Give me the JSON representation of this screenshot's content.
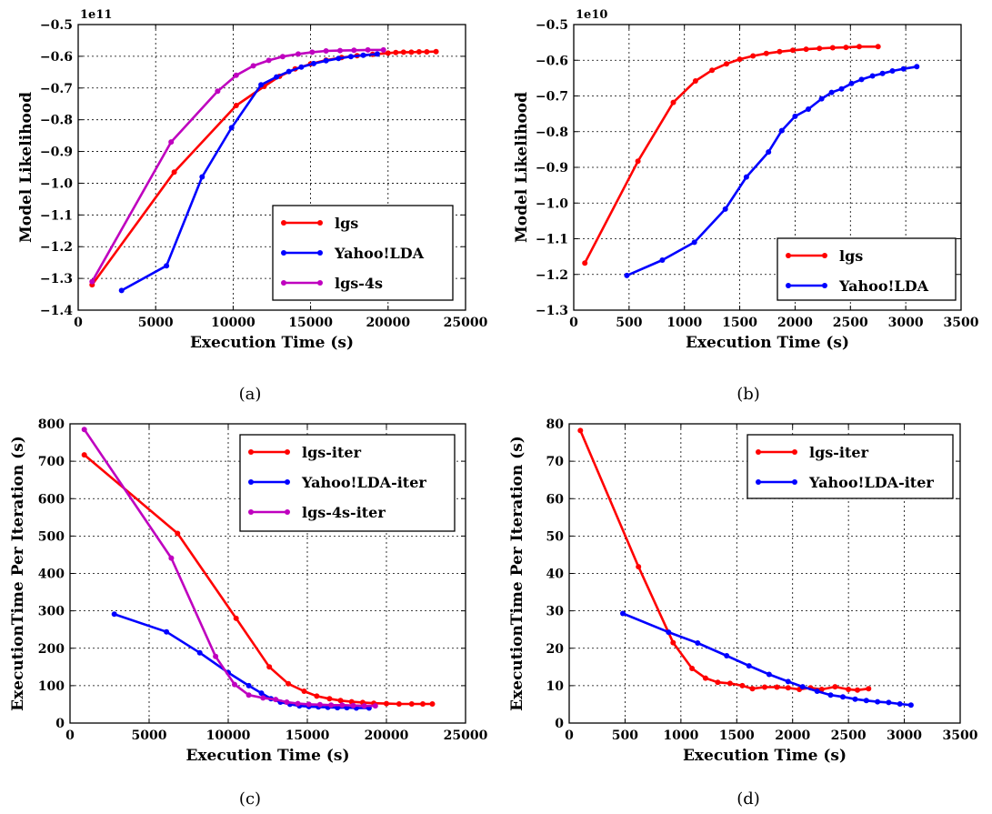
{
  "chart_data": [
    {
      "type": "line",
      "caption": "(a)",
      "xlabel": "Execution Time (s)",
      "ylabel": "Model Likelihood",
      "y_offset_label": "1e11",
      "xlim": [
        0,
        25000
      ],
      "ylim": [
        -1.4,
        -0.5
      ],
      "xticks": [
        0,
        5000,
        10000,
        15000,
        20000,
        25000
      ],
      "yticks": [
        -1.4,
        -1.3,
        -1.2,
        -1.1,
        -1.0,
        -0.9,
        -0.8,
        -0.7,
        -0.6,
        -0.5
      ],
      "xtick_labels": [
        "0",
        "5000",
        "10000",
        "15000",
        "20000",
        "25000"
      ],
      "ytick_labels": [
        "−1.4",
        "−1.3",
        "−1.2",
        "−1.1",
        "−1.0",
        "−0.9",
        "−0.8",
        "−0.7",
        "−0.6",
        "−0.5"
      ],
      "grid": true,
      "legend_position": "lower-right",
      "series": [
        {
          "name": "lgs",
          "color": "#ff0000",
          "points": [
            [
              900,
              -1.32
            ],
            [
              6200,
              -0.965
            ],
            [
              10200,
              -0.755
            ],
            [
              12000,
              -0.695
            ],
            [
              13000,
              -0.663
            ],
            [
              14000,
              -0.64
            ],
            [
              15000,
              -0.624
            ],
            [
              16000,
              -0.612
            ],
            [
              17000,
              -0.604
            ],
            [
              18000,
              -0.598
            ],
            [
              19000,
              -0.594
            ],
            [
              20000,
              -0.59
            ],
            [
              20500,
              -0.588
            ],
            [
              21000,
              -0.587
            ],
            [
              21500,
              -0.587
            ],
            [
              22000,
              -0.586
            ],
            [
              22500,
              -0.586
            ],
            [
              23100,
              -0.585
            ]
          ]
        },
        {
          "name": "Yahoo!LDA",
          "color": "#0000ff",
          "points": [
            [
              2800,
              -1.338
            ],
            [
              5700,
              -1.26
            ],
            [
              8000,
              -0.98
            ],
            [
              9900,
              -0.825
            ],
            [
              11800,
              -0.69
            ],
            [
              12800,
              -0.665
            ],
            [
              13600,
              -0.648
            ],
            [
              14400,
              -0.634
            ],
            [
              15200,
              -0.623
            ],
            [
              16000,
              -0.614
            ],
            [
              16800,
              -0.607
            ],
            [
              17600,
              -0.601
            ],
            [
              18400,
              -0.597
            ],
            [
              19300,
              -0.593
            ]
          ]
        },
        {
          "name": "lgs-4s",
          "color": "#bf00bf",
          "points": [
            [
              900,
              -1.31
            ],
            [
              6000,
              -0.87
            ],
            [
              9000,
              -0.71
            ],
            [
              10200,
              -0.66
            ],
            [
              11300,
              -0.63
            ],
            [
              12300,
              -0.613
            ],
            [
              13200,
              -0.601
            ],
            [
              14200,
              -0.593
            ],
            [
              15100,
              -0.587
            ],
            [
              16000,
              -0.583
            ],
            [
              16900,
              -0.582
            ],
            [
              17800,
              -0.581
            ],
            [
              18700,
              -0.58
            ],
            [
              19700,
              -0.58
            ]
          ]
        }
      ]
    },
    {
      "type": "line",
      "caption": "(b)",
      "xlabel": "Execution Time (s)",
      "ylabel": "Model Likelihood",
      "y_offset_label": "1e10",
      "xlim": [
        0,
        3500
      ],
      "ylim": [
        -1.3,
        -0.5
      ],
      "xticks": [
        0,
        500,
        1000,
        1500,
        2000,
        2500,
        3000,
        3500
      ],
      "yticks": [
        -1.3,
        -1.2,
        -1.1,
        -1.0,
        -0.9,
        -0.8,
        -0.7,
        -0.6,
        -0.5
      ],
      "xtick_labels": [
        "0",
        "500",
        "1000",
        "1500",
        "2000",
        "2500",
        "3000",
        "3500"
      ],
      "ytick_labels": [
        "−1.3",
        "−1.2",
        "−1.1",
        "−1.0",
        "−0.9",
        "−0.8",
        "−0.7",
        "−0.6",
        "−0.5"
      ],
      "grid": true,
      "legend_position": "lower-right",
      "series": [
        {
          "name": "lgs",
          "color": "#ff0000",
          "points": [
            [
              100,
              -1.168
            ],
            [
              580,
              -0.883
            ],
            [
              900,
              -0.718
            ],
            [
              1100,
              -0.658
            ],
            [
              1250,
              -0.628
            ],
            [
              1380,
              -0.61
            ],
            [
              1500,
              -0.597
            ],
            [
              1620,
              -0.588
            ],
            [
              1740,
              -0.581
            ],
            [
              1860,
              -0.576
            ],
            [
              1980,
              -0.572
            ],
            [
              2100,
              -0.569
            ],
            [
              2220,
              -0.567
            ],
            [
              2340,
              -0.565
            ],
            [
              2460,
              -0.564
            ],
            [
              2580,
              -0.562
            ],
            [
              2750,
              -0.562
            ]
          ]
        },
        {
          "name": "Yahoo!LDA",
          "color": "#0000ff",
          "points": [
            [
              480,
              -1.203
            ],
            [
              800,
              -1.16
            ],
            [
              1090,
              -1.11
            ],
            [
              1370,
              -1.017
            ],
            [
              1560,
              -0.927
            ],
            [
              1760,
              -0.857
            ],
            [
              1880,
              -0.797
            ],
            [
              2000,
              -0.757
            ],
            [
              2120,
              -0.737
            ],
            [
              2240,
              -0.708
            ],
            [
              2330,
              -0.69
            ],
            [
              2420,
              -0.68
            ],
            [
              2510,
              -0.665
            ],
            [
              2600,
              -0.654
            ],
            [
              2700,
              -0.644
            ],
            [
              2790,
              -0.637
            ],
            [
              2880,
              -0.63
            ],
            [
              2980,
              -0.624
            ],
            [
              3100,
              -0.618
            ]
          ]
        }
      ]
    },
    {
      "type": "line",
      "caption": "(c)",
      "xlabel": "Execution Time (s)",
      "ylabel": "ExecutionTime Per Iteration (s)",
      "xlim": [
        0,
        25000
      ],
      "ylim": [
        0,
        800
      ],
      "xticks": [
        0,
        5000,
        10000,
        15000,
        20000,
        25000
      ],
      "yticks": [
        0,
        100,
        200,
        300,
        400,
        500,
        600,
        700,
        800
      ],
      "xtick_labels": [
        "0",
        "5000",
        "10000",
        "15000",
        "20000",
        "25000"
      ],
      "ytick_labels": [
        "0",
        "100",
        "200",
        "300",
        "400",
        "500",
        "600",
        "700",
        "800"
      ],
      "grid": true,
      "legend_position": "top-right",
      "series": [
        {
          "name": "lgs-iter",
          "color": "#ff0000",
          "points": [
            [
              900,
              717
            ],
            [
              6800,
              507
            ],
            [
              10500,
              280
            ],
            [
              12600,
              150
            ],
            [
              13800,
              105
            ],
            [
              14800,
              85
            ],
            [
              15600,
              72
            ],
            [
              16400,
              65
            ],
            [
              17100,
              60
            ],
            [
              17800,
              57
            ],
            [
              18500,
              55
            ],
            [
              19200,
              53
            ],
            [
              20000,
              52
            ],
            [
              20800,
              51
            ],
            [
              21600,
              51
            ],
            [
              22300,
              51
            ],
            [
              22900,
              51
            ]
          ]
        },
        {
          "name": "Yahoo!LDA-iter",
          "color": "#0000ff",
          "points": [
            [
              2800,
              291
            ],
            [
              6100,
              244
            ],
            [
              8200,
              188
            ],
            [
              10000,
              135
            ],
            [
              11300,
              100
            ],
            [
              12100,
              80
            ],
            [
              12700,
              65
            ],
            [
              13300,
              56
            ],
            [
              13900,
              50
            ],
            [
              14500,
              46
            ],
            [
              15100,
              44
            ],
            [
              15700,
              43
            ],
            [
              16300,
              42
            ],
            [
              16900,
              41
            ],
            [
              17500,
              41
            ],
            [
              18100,
              40
            ],
            [
              18900,
              40
            ]
          ]
        },
        {
          "name": "lgs-4s-iter",
          "color": "#bf00bf",
          "points": [
            [
              900,
              785
            ],
            [
              6400,
              441
            ],
            [
              9200,
              178
            ],
            [
              10400,
              103
            ],
            [
              11300,
              75
            ],
            [
              12200,
              67
            ],
            [
              13000,
              63
            ],
            [
              13700,
              56
            ],
            [
              14400,
              52
            ],
            [
              15100,
              50
            ],
            [
              15800,
              49
            ],
            [
              16500,
              48
            ],
            [
              17200,
              48
            ],
            [
              17900,
              47
            ],
            [
              18600,
              46
            ],
            [
              19300,
              46
            ]
          ]
        }
      ]
    },
    {
      "type": "line",
      "caption": "(d)",
      "xlabel": "Execution Time (s)",
      "ylabel": "ExecutionTime Per Iteration (s)",
      "xlim": [
        0,
        3500
      ],
      "ylim": [
        0,
        80
      ],
      "xticks": [
        0,
        500,
        1000,
        1500,
        2000,
        2500,
        3000,
        3500
      ],
      "yticks": [
        0,
        10,
        20,
        30,
        40,
        50,
        60,
        70,
        80
      ],
      "xtick_labels": [
        "0",
        "500",
        "1000",
        "1500",
        "2000",
        "2500",
        "3000",
        "3500"
      ],
      "ytick_labels": [
        "0",
        "10",
        "20",
        "30",
        "40",
        "50",
        "60",
        "70",
        "80"
      ],
      "grid": true,
      "legend_position": "top-right",
      "series": [
        {
          "name": "lgs-iter",
          "color": "#ff0000",
          "points": [
            [
              100,
              78.2
            ],
            [
              620,
              41.8
            ],
            [
              930,
              21.5
            ],
            [
              1100,
              14.6
            ],
            [
              1220,
              12.0
            ],
            [
              1330,
              10.9
            ],
            [
              1440,
              10.6
            ],
            [
              1550,
              10.0
            ],
            [
              1640,
              9.2
            ],
            [
              1750,
              9.6
            ],
            [
              1860,
              9.6
            ],
            [
              1960,
              9.4
            ],
            [
              2060,
              9.0
            ],
            [
              2160,
              9.4
            ],
            [
              2260,
              9.0
            ],
            [
              2380,
              9.7
            ],
            [
              2500,
              9.0
            ],
            [
              2580,
              8.8
            ],
            [
              2680,
              9.2
            ]
          ]
        },
        {
          "name": "Yahoo!LDA-iter",
          "color": "#0000ff",
          "points": [
            [
              480,
              29.3
            ],
            [
              890,
              24.3
            ],
            [
              1150,
              21.4
            ],
            [
              1410,
              18.0
            ],
            [
              1610,
              15.3
            ],
            [
              1790,
              13.0
            ],
            [
              1960,
              11.1
            ],
            [
              2090,
              9.7
            ],
            [
              2220,
              8.5
            ],
            [
              2340,
              7.5
            ],
            [
              2450,
              7.0
            ],
            [
              2560,
              6.4
            ],
            [
              2660,
              6.0
            ],
            [
              2760,
              5.7
            ],
            [
              2860,
              5.5
            ],
            [
              2960,
              5.1
            ],
            [
              3060,
              4.8
            ]
          ]
        }
      ]
    }
  ]
}
